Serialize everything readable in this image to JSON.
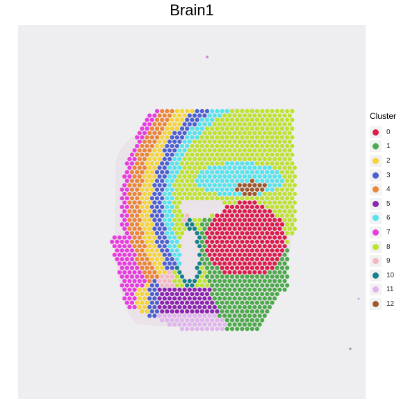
{
  "plot": {
    "title": "Brain1"
  },
  "legend": {
    "title": "Cluster",
    "items": [
      {
        "label": "0",
        "color": "#dc1c4c"
      },
      {
        "label": "1",
        "color": "#4caa4c"
      },
      {
        "label": "2",
        "color": "#f4d437"
      },
      {
        "label": "3",
        "color": "#4c60d0"
      },
      {
        "label": "4",
        "color": "#ec8636"
      },
      {
        "label": "5",
        "color": "#8c24b0"
      },
      {
        "label": "6",
        "color": "#54e4ec"
      },
      {
        "label": "7",
        "color": "#e83cde"
      },
      {
        "label": "8",
        "color": "#bce42c"
      },
      {
        "label": "9",
        "color": "#f4b8c4"
      },
      {
        "label": "10",
        "color": "#14808a"
      },
      {
        "label": "11",
        "color": "#e0b4ec"
      },
      {
        "label": "12",
        "color": "#9c5a2c"
      }
    ]
  }
}
